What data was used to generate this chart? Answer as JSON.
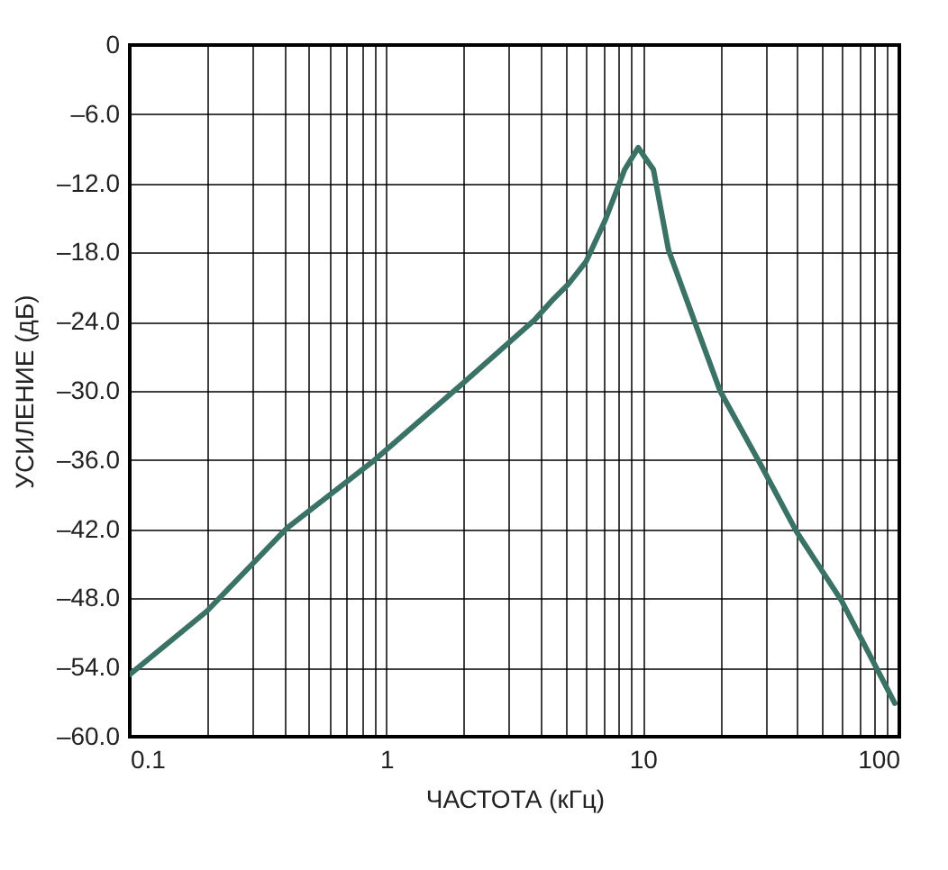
{
  "chart_data": {
    "type": "line",
    "xlabel": "ЧАСТОТА (кГц)",
    "ylabel": "УСИЛЕНИЕ (дБ)",
    "log": "x",
    "grid": true,
    "marker": "none",
    "line_style": "solid",
    "x": [
      0.1,
      0.2,
      0.41,
      0.9,
      2,
      3.8,
      4.5,
      5.1,
      6,
      7.1,
      8.5,
      9.6,
      10.3,
      11,
      12.6,
      15.8,
      20,
      29.3,
      39.7,
      59.5,
      96
    ],
    "series": [
      {
        "color": "#3a7265",
        "values": [
          -54.6,
          -49.1,
          -41.9,
          -36,
          -29.3,
          -23.8,
          -22,
          -20.8,
          -18.8,
          -15.3,
          -10.8,
          -8.9,
          -9.9,
          -10.8,
          -17.8,
          -23.8,
          -30,
          -36.7,
          -42.2,
          -48.2,
          -57.1
        ]
      }
    ],
    "xlim": [
      0.1,
      100
    ],
    "xticks": [
      0.1,
      {
        "value": 0.2,
        "label": null
      },
      {
        "value": 0.3,
        "label": null
      },
      {
        "value": 0.4,
        "label": null
      },
      {
        "value": 0.5,
        "label": null
      },
      {
        "value": 0.6,
        "label": null
      },
      {
        "value": 0.7,
        "label": null
      },
      {
        "value": 0.8,
        "label": null
      },
      {
        "value": 0.9,
        "label": null
      },
      1,
      {
        "value": 2,
        "label": null
      },
      {
        "value": 3,
        "label": null
      },
      {
        "value": 4,
        "label": null
      },
      {
        "value": 5,
        "label": null
      },
      {
        "value": 6,
        "label": null
      },
      {
        "value": 7,
        "label": null
      },
      {
        "value": 8,
        "label": null
      },
      {
        "value": 9,
        "label": null
      },
      10,
      {
        "value": 20,
        "label": null
      },
      {
        "value": 30,
        "label": null
      },
      {
        "value": 40,
        "label": null
      },
      {
        "value": 50,
        "label": null
      },
      {
        "value": 60,
        "label": null
      },
      {
        "value": 70,
        "label": null
      },
      {
        "value": 80,
        "label": null
      },
      {
        "value": 90,
        "label": null
      },
      100
    ],
    "ylim": [
      -60,
      0
    ],
    "yticks": [
      0,
      {
        "value": -6,
        "label": "–6.0"
      },
      {
        "value": -12,
        "label": "–12.0"
      },
      {
        "value": -18,
        "label": "–18.0"
      },
      {
        "value": -24,
        "label": "–24.0"
      },
      {
        "value": -30,
        "label": "–30.0"
      },
      {
        "value": -36,
        "label": "–36.0"
      },
      {
        "value": -42,
        "label": "–42.0"
      },
      {
        "value": -48,
        "label": "–48.0"
      },
      {
        "value": -54,
        "label": "–54.0"
      },
      {
        "value": -60,
        "label": "–60.0"
      }
    ]
  }
}
